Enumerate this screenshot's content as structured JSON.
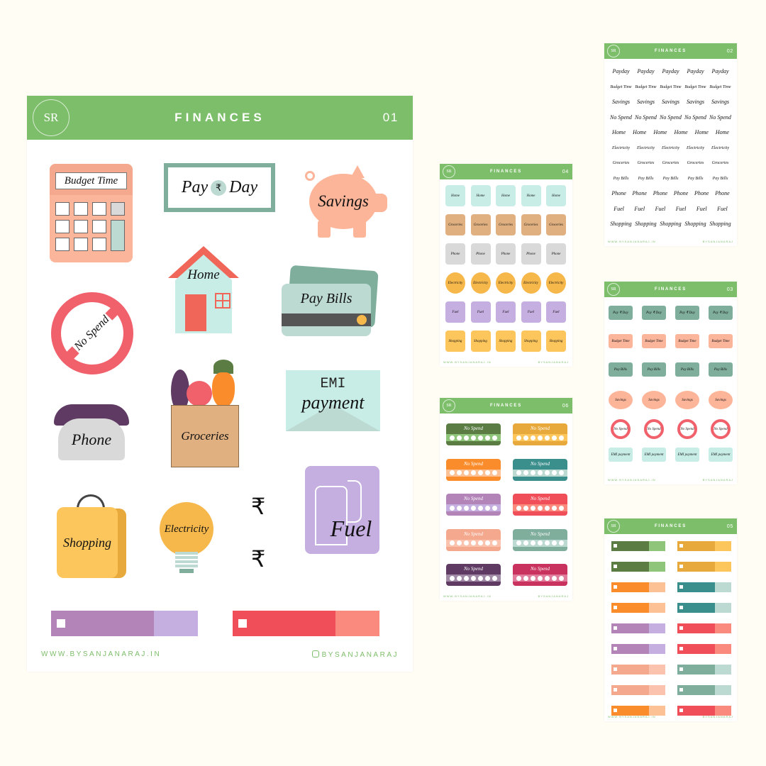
{
  "brand": {
    "logo": "SR",
    "website": "WWW.BYSANJANARAJ.IN",
    "instagram": "BYSANJANARAJ",
    "accent": "#7dbe6a"
  },
  "main_sheet": {
    "title": "FINANCES",
    "number": "01",
    "stickers": {
      "budget": "Budget Time",
      "payday_left": "Pay",
      "payday_symbol": "₹",
      "payday_right": "Day",
      "savings": "Savings",
      "home": "Home",
      "paybills": "Pay Bills",
      "nospend": "No Spend",
      "groceries": "Groceries",
      "emi_1": "EMI",
      "emi_2": "payment",
      "phone": "Phone",
      "shopping": "Shopping",
      "electricity": "Electricity",
      "rupee_1": "₹",
      "rupee_2": "₹",
      "fuel": "Fuel"
    },
    "bars": [
      {
        "left": "#b384b8",
        "right": "#c5aee0"
      },
      {
        "left": "#f04f5a",
        "right": "#fb8a7e"
      }
    ]
  },
  "sheet02": {
    "title": "FINANCES",
    "number": "02",
    "rows": [
      {
        "label": "Payday",
        "count": 5
      },
      {
        "label": "Budget Time",
        "count": 5
      },
      {
        "label": "Savings",
        "count": 5
      },
      {
        "label": "No Spend",
        "count": 5
      },
      {
        "label": "Home",
        "count": 6
      },
      {
        "label": "Electricity",
        "count": 5
      },
      {
        "label": "Groceries",
        "count": 5
      },
      {
        "label": "Pay Bills",
        "count": 5
      },
      {
        "label": "Phone",
        "count": 6
      },
      {
        "label": "Fuel",
        "count": 6
      },
      {
        "label": "Shopping",
        "count": 5
      }
    ]
  },
  "sheet03": {
    "title": "FINANCES",
    "number": "03",
    "rows": [
      {
        "label": "Pay ₹ Day",
        "color": "#7fae9c"
      },
      {
        "label": "Budget Time",
        "color": "#fbb59b"
      },
      {
        "label": "Pay Bills",
        "color": "#7fae9c"
      },
      {
        "label": "Savings",
        "color": "#fdb59a"
      },
      {
        "label": "No Spend",
        "color": "#f0616c"
      },
      {
        "label": "EMI payment",
        "color": "#c8ede6"
      }
    ]
  },
  "sheet04": {
    "title": "FINANCES",
    "number": "04",
    "rows": [
      {
        "label": "Home",
        "color": "#c8ede6"
      },
      {
        "label": "Groceries",
        "color": "#e0b080"
      },
      {
        "label": "Phone",
        "color": "#d9d9d9"
      },
      {
        "label": "Electricity",
        "color": "#f7b84b"
      },
      {
        "label": "Fuel",
        "color": "#c5aee0"
      },
      {
        "label": "Shopping",
        "color": "#fdc65c"
      }
    ]
  },
  "sheet05": {
    "title": "FINANCES",
    "number": "05",
    "bars": [
      [
        "#5b7d44",
        "#8fc57a"
      ],
      [
        "#e8a93c",
        "#fdc65c"
      ],
      [
        "#5b7d44",
        "#8fc57a"
      ],
      [
        "#e8a93c",
        "#fdc65c"
      ],
      [
        "#fb8c2c",
        "#fcc195"
      ],
      [
        "#3a8e8c",
        "#bcd9d2"
      ],
      [
        "#fb8c2c",
        "#fcc195"
      ],
      [
        "#3a8e8c",
        "#bcd9d2"
      ],
      [
        "#b384b8",
        "#c5aee0"
      ],
      [
        "#f04f5a",
        "#fb8a7e"
      ],
      [
        "#b384b8",
        "#c5aee0"
      ],
      [
        "#f04f5a",
        "#fb8a7e"
      ],
      [
        "#f4a88e",
        "#fbc3ad"
      ],
      [
        "#7fae9c",
        "#bcd9d2"
      ],
      [
        "#f4a88e",
        "#fbc3ad"
      ],
      [
        "#7fae9c",
        "#bcd9d2"
      ],
      [
        "#fb8c2c",
        "#fcc195"
      ],
      [
        "#f04f5a",
        "#fb8a7e"
      ]
    ]
  },
  "sheet06": {
    "title": "FINANCES",
    "number": "06",
    "label": "No Spend",
    "trackers": [
      [
        "#5b7d44",
        "#8fc57a"
      ],
      [
        "#e8a93c",
        "#fdc65c"
      ],
      [
        "#fb8c2c",
        "#fcc195"
      ],
      [
        "#3a8e8c",
        "#bcd9d2"
      ],
      [
        "#b384b8",
        "#c5aee0"
      ],
      [
        "#f04f5a",
        "#fb8a7e"
      ],
      [
        "#f4a88e",
        "#fbc3ad"
      ],
      [
        "#7fae9c",
        "#bcd9d2"
      ],
      [
        "#5f3b63",
        "#a08aa5"
      ],
      [
        "#c9315f",
        "#e07d9c"
      ]
    ]
  }
}
